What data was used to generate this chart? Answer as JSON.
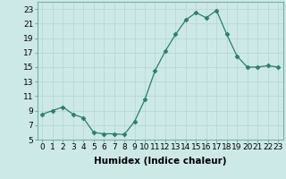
{
  "x": [
    0,
    1,
    2,
    3,
    4,
    5,
    6,
    7,
    8,
    9,
    10,
    11,
    12,
    13,
    14,
    15,
    16,
    17,
    18,
    19,
    20,
    21,
    22,
    23
  ],
  "y": [
    8.5,
    9.0,
    9.5,
    8.5,
    8.0,
    6.0,
    5.8,
    5.8,
    5.7,
    7.5,
    10.5,
    14.5,
    17.2,
    19.5,
    21.5,
    22.5,
    21.8,
    22.8,
    19.5,
    16.5,
    15.0,
    15.0,
    15.2,
    15.0
  ],
  "line_color": "#2d7d6e",
  "marker": "D",
  "marker_size": 2.5,
  "bg_color": "#cce9e7",
  "grid_color": "#b8d8d6",
  "xlabel": "Humidex (Indice chaleur)",
  "ylim": [
    5,
    24
  ],
  "xlim": [
    -0.5,
    23.5
  ],
  "yticks": [
    5,
    7,
    9,
    11,
    13,
    15,
    17,
    19,
    21,
    23
  ],
  "xticks": [
    0,
    1,
    2,
    3,
    4,
    5,
    6,
    7,
    8,
    9,
    10,
    11,
    12,
    13,
    14,
    15,
    16,
    17,
    18,
    19,
    20,
    21,
    22,
    23
  ],
  "xtick_labels": [
    "0",
    "1",
    "2",
    "3",
    "4",
    "5",
    "6",
    "7",
    "8",
    "9",
    "10",
    "11",
    "12",
    "13",
    "14",
    "15",
    "16",
    "17",
    "18",
    "19",
    "20",
    "21",
    "22",
    "23"
  ],
  "xlabel_fontsize": 7.5,
  "tick_fontsize": 6.5
}
